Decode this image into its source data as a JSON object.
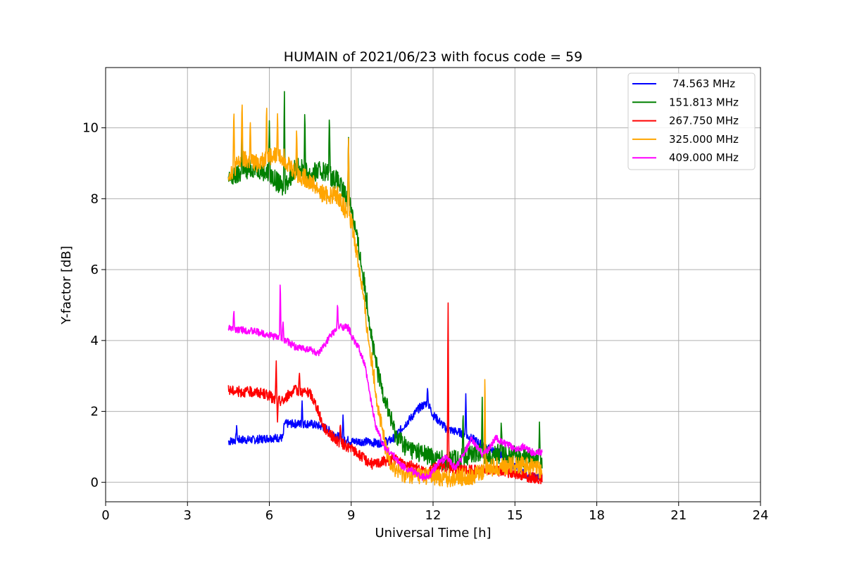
{
  "chart_data": {
    "type": "line",
    "title": "HUMAIN of 2021/06/23 with focus code = 59",
    "xlabel": "Universal Time [h]",
    "ylabel": "Y-factor [dB]",
    "xlim": [
      0,
      24
    ],
    "ylim": [
      -0.55,
      11.7
    ],
    "xticks": [
      0,
      3,
      6,
      9,
      12,
      15,
      18,
      21,
      24
    ],
    "yticks": [
      0,
      2,
      4,
      6,
      8,
      10
    ],
    "xtick_labels": [
      "0",
      "3",
      "6",
      "9",
      "12",
      "15",
      "18",
      "21",
      "24"
    ],
    "ytick_labels": [
      "0",
      "2",
      "4",
      "6",
      "8",
      "10"
    ],
    "grid": true,
    "legend_position": "top-right",
    "series": [
      {
        "name": " 74.563 MHz",
        "color": "#0000ff",
        "x": [
          4.5,
          4.8,
          5.0,
          5.5,
          6.0,
          6.5,
          6.55,
          7.0,
          7.5,
          8.0,
          8.5,
          9.0,
          9.5,
          10.0,
          10.5,
          11.0,
          11.5,
          11.8,
          12.0,
          12.5,
          13.0,
          13.5,
          14.0,
          14.5,
          15.0,
          15.5,
          16.0
        ],
        "y": [
          1.15,
          1.2,
          1.2,
          1.2,
          1.25,
          1.25,
          1.65,
          1.65,
          1.65,
          1.55,
          1.3,
          1.15,
          1.15,
          1.1,
          1.2,
          1.65,
          2.1,
          2.25,
          1.9,
          1.5,
          1.4,
          1.2,
          0.95,
          0.8,
          0.45,
          0.15,
          0.15
        ],
        "spikes": [
          [
            4.8,
            1.6
          ],
          [
            7.2,
            2.3
          ],
          [
            8.7,
            1.9
          ],
          [
            11.8,
            2.7
          ],
          [
            13.2,
            2.5
          ]
        ]
      },
      {
        "name": "151.813 MHz",
        "color": "#008000",
        "x": [
          4.5,
          5.0,
          5.5,
          6.0,
          6.5,
          7.0,
          7.5,
          8.0,
          8.5,
          9.0,
          9.3,
          9.6,
          9.8,
          10.0,
          10.3,
          10.6,
          11.0,
          11.5,
          12.0,
          12.5,
          13.0,
          13.5,
          14.0,
          14.5,
          15.0,
          15.5,
          16.0
        ],
        "y": [
          8.5,
          8.75,
          8.9,
          8.7,
          8.3,
          8.9,
          8.7,
          8.8,
          8.5,
          7.8,
          6.5,
          5.0,
          3.8,
          3.0,
          2.2,
          1.4,
          1.0,
          0.85,
          0.7,
          0.6,
          0.65,
          0.85,
          0.8,
          0.8,
          0.75,
          0.65,
          0.65
        ],
        "spikes": [
          [
            5.0,
            9.9
          ],
          [
            6.0,
            10.2
          ],
          [
            6.55,
            11.2
          ],
          [
            7.3,
            10.6
          ],
          [
            8.2,
            10.5
          ],
          [
            8.9,
            10.0
          ],
          [
            13.1,
            2.1
          ],
          [
            13.8,
            2.4
          ],
          [
            14.5,
            1.8
          ],
          [
            15.9,
            1.7
          ]
        ]
      },
      {
        "name": "267.750 MHz",
        "color": "#ff0000",
        "x": [
          4.5,
          5.0,
          5.5,
          6.0,
          6.2,
          6.5,
          6.8,
          7.0,
          7.5,
          7.7,
          8.0,
          8.5,
          9.0,
          9.5,
          9.8,
          10.0,
          10.5,
          11.0,
          11.5,
          11.8,
          12.0,
          12.5,
          13.0,
          13.5,
          14.0,
          14.5,
          15.0,
          15.5,
          16.0
        ],
        "y": [
          2.6,
          2.55,
          2.55,
          2.45,
          2.3,
          2.3,
          2.55,
          2.6,
          2.5,
          2.2,
          1.55,
          1.15,
          0.95,
          0.65,
          0.5,
          0.55,
          0.65,
          0.55,
          0.35,
          0.2,
          0.45,
          0.4,
          0.35,
          0.35,
          0.35,
          0.3,
          0.25,
          0.15,
          0.1
        ],
        "spikes": [
          [
            6.25,
            3.5
          ],
          [
            6.3,
            1.7
          ],
          [
            7.1,
            3.15
          ],
          [
            8.6,
            1.7
          ],
          [
            12.55,
            5.4
          ]
        ]
      },
      {
        "name": "325.000 MHz",
        "color": "#ffa500",
        "x": [
          4.5,
          5.0,
          5.5,
          6.0,
          6.5,
          7.0,
          7.5,
          8.0,
          8.5,
          9.0,
          9.2,
          9.4,
          9.6,
          9.8,
          10.0,
          10.3,
          10.6,
          11.0,
          11.5,
          12.0,
          12.5,
          13.0,
          13.5,
          14.0,
          14.5,
          15.0,
          15.5,
          16.0
        ],
        "y": [
          8.7,
          9.1,
          9.0,
          9.2,
          9.2,
          8.7,
          8.5,
          8.1,
          8.1,
          7.4,
          6.5,
          5.5,
          4.2,
          3.2,
          2.0,
          0.8,
          0.35,
          0.2,
          0.2,
          0.15,
          0.1,
          0.15,
          0.2,
          0.4,
          0.45,
          0.5,
          0.45,
          0.3
        ],
        "spikes": [
          [
            4.7,
            10.6
          ],
          [
            5.0,
            10.9
          ],
          [
            5.3,
            10.3
          ],
          [
            5.9,
            10.8
          ],
          [
            6.3,
            10.4
          ],
          [
            7.0,
            10.1
          ],
          [
            8.9,
            10.0
          ],
          [
            13.9,
            3.3
          ]
        ]
      },
      {
        "name": "409.000 MHz",
        "color": "#ff00ff",
        "x": [
          4.5,
          5.0,
          5.5,
          6.0,
          6.5,
          7.0,
          7.5,
          7.8,
          8.0,
          8.3,
          8.6,
          8.9,
          9.1,
          9.3,
          9.5,
          9.7,
          9.9,
          10.0,
          10.2,
          10.5,
          10.8,
          11.0,
          11.3,
          11.6,
          11.9,
          12.2,
          12.5,
          12.8,
          13.0,
          13.2,
          13.4,
          13.6,
          13.8,
          14.0,
          14.3,
          14.6,
          15.0,
          15.3,
          15.6,
          16.0
        ],
        "y": [
          4.35,
          4.3,
          4.25,
          4.15,
          4.05,
          3.8,
          3.75,
          3.6,
          3.85,
          4.2,
          4.4,
          4.35,
          4.0,
          3.75,
          3.3,
          2.4,
          1.6,
          1.4,
          1.0,
          0.8,
          0.5,
          0.4,
          0.3,
          0.15,
          0.2,
          0.55,
          0.7,
          0.4,
          0.6,
          0.9,
          1.2,
          1.0,
          0.8,
          0.9,
          1.25,
          1.1,
          0.95,
          1.0,
          0.85,
          0.85
        ],
        "spikes": [
          [
            4.7,
            4.9
          ],
          [
            6.4,
            5.8
          ],
          [
            6.5,
            4.6
          ],
          [
            8.5,
            5.1
          ]
        ]
      }
    ]
  }
}
